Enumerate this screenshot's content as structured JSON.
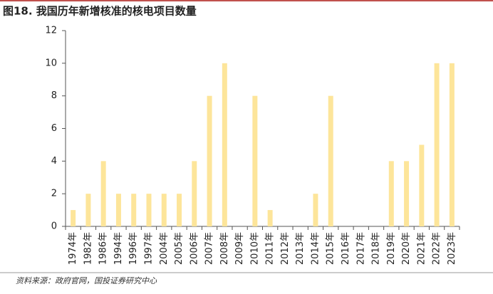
{
  "chart_data": {
    "type": "bar",
    "title": "图18. 我国历年新增核准的核电项目数量",
    "source": "资料来源：政府官网，国投证券研究中心",
    "categories": [
      "1974年",
      "1982年",
      "1986年",
      "1994年",
      "1996年",
      "1997年",
      "2004年",
      "2005年",
      "2006年",
      "2007年",
      "2008年",
      "2009年",
      "2010年",
      "2011年",
      "2012年",
      "2013年",
      "2014年",
      "2015年",
      "2016年",
      "2017年",
      "2018年",
      "2019年",
      "2020年",
      "2021年",
      "2022年",
      "2023年"
    ],
    "values": [
      1,
      2,
      4,
      2,
      2,
      2,
      2,
      2,
      4,
      8,
      10,
      0,
      8,
      1,
      0,
      0,
      2,
      8,
      0,
      0,
      0,
      4,
      4,
      5,
      10,
      10
    ],
    "color": "#fde59a",
    "ylim": [
      0,
      12
    ],
    "yticks": [
      0,
      2,
      4,
      6,
      8,
      10,
      12
    ],
    "grid": false
  }
}
